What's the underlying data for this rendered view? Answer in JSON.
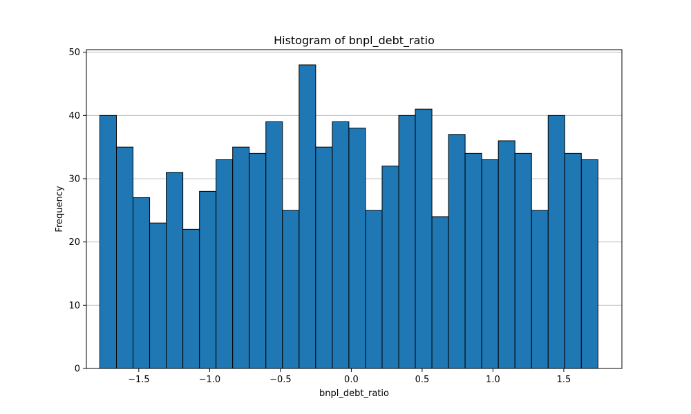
{
  "chart_data": {
    "type": "bar",
    "title": "Histogram of bnpl_debt_ratio",
    "xlabel": "bnpl_debt_ratio",
    "ylabel": "Frequency",
    "x_range": [
      -1.87,
      1.91
    ],
    "ylim": [
      0,
      50.4
    ],
    "bins": {
      "start": -1.775,
      "width": 0.1172,
      "counts": [
        40,
        35,
        27,
        23,
        31,
        22,
        28,
        33,
        35,
        34,
        39,
        25,
        48,
        35,
        39,
        38,
        25,
        32,
        40,
        41,
        24,
        37,
        34,
        33,
        36,
        34,
        25,
        40,
        34,
        33
      ]
    },
    "x_ticks": [
      {
        "value": -1.5,
        "label": "−1.5"
      },
      {
        "value": -1.0,
        "label": "−1.0"
      },
      {
        "value": -0.5,
        "label": "−0.5"
      },
      {
        "value": 0.0,
        "label": "0.0"
      },
      {
        "value": 0.5,
        "label": "0.5"
      },
      {
        "value": 1.0,
        "label": "1.0"
      },
      {
        "value": 1.5,
        "label": "1.5"
      }
    ],
    "y_ticks": [
      {
        "value": 0,
        "label": "0"
      },
      {
        "value": 10,
        "label": "10"
      },
      {
        "value": 20,
        "label": "20"
      },
      {
        "value": 30,
        "label": "30"
      },
      {
        "value": 40,
        "label": "40"
      },
      {
        "value": 50,
        "label": "50"
      }
    ],
    "grid": {
      "x": false,
      "y": true
    },
    "legend": "none",
    "colors": {
      "bar_fill": "#1f77b4",
      "bar_edge": "#000000",
      "grid": "#b0b0b0",
      "axis": "#000000"
    }
  }
}
